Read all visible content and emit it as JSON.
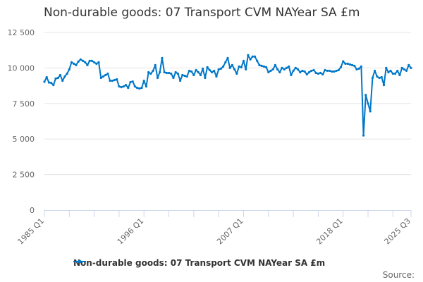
{
  "chart_data": {
    "type": "line",
    "title": "Non-durable goods: 07 Transport CVM NAYear SA £m",
    "xlabel": "",
    "ylabel": "",
    "ylim": [
      0,
      12500
    ],
    "yticks": [
      0,
      2500,
      5000,
      7500,
      10000,
      12500
    ],
    "ytick_labels": [
      "0",
      "2 500",
      "5 000",
      "7 500",
      "10 000",
      "12 500"
    ],
    "x_start": "1985 Q1",
    "x_end": "2025 Q3",
    "xtick_labels": [
      {
        "index": 0,
        "label": "1985 Q1"
      },
      {
        "index": 44,
        "label": "1996 Q1"
      },
      {
        "index": 88,
        "label": "2007 Q1"
      },
      {
        "index": 132,
        "label": "2018 Q1"
      },
      {
        "index": 162,
        "label": "2025 Q3"
      }
    ],
    "grid": true,
    "legend_position": "bottom",
    "series": [
      {
        "name": "Non-durable goods: 07 Transport CVM NAYear SA £m",
        "color": "#0077c8",
        "values": [
          9030,
          9350,
          8980,
          8950,
          8800,
          9250,
          9300,
          9500,
          9100,
          9400,
          9600,
          9900,
          10400,
          10300,
          10200,
          10450,
          10600,
          10500,
          10400,
          10200,
          10500,
          10500,
          10400,
          10300,
          10400,
          9300,
          9400,
          9500,
          9600,
          9100,
          9100,
          9150,
          9200,
          8700,
          8650,
          8700,
          8800,
          8600,
          9000,
          9050,
          8700,
          8600,
          8550,
          8600,
          9100,
          8700,
          9700,
          9600,
          9800,
          10200,
          9300,
          9700,
          10700,
          9700,
          9650,
          9650,
          9600,
          9300,
          9700,
          9600,
          9100,
          9500,
          9450,
          9400,
          9800,
          9750,
          9500,
          9850,
          9700,
          9500,
          9950,
          9300,
          10050,
          9850,
          9700,
          9800,
          9400,
          9900,
          9950,
          10100,
          10400,
          10700,
          10000,
          10200,
          9900,
          9600,
          10100,
          10050,
          10500,
          9900,
          10900,
          10600,
          10800,
          10800,
          10500,
          10200,
          10150,
          10100,
          10050,
          9700,
          9800,
          9900,
          10200,
          9900,
          9700,
          10000,
          9900,
          10000,
          10100,
          9500,
          9800,
          10000,
          9900,
          9700,
          9800,
          9750,
          9550,
          9700,
          9800,
          9850,
          9650,
          9600,
          9650,
          9550,
          9850,
          9800,
          9800,
          9750,
          9750,
          9800,
          9850,
          10050,
          10470,
          10300,
          10300,
          10250,
          10200,
          10150,
          9900,
          9950,
          10100,
          5250,
          8100,
          7500,
          6950,
          9300,
          9800,
          9400,
          9300,
          9350,
          8800,
          10000,
          9700,
          9800,
          9600,
          9600,
          9800,
          9500,
          10000,
          9900,
          9800,
          10200,
          10000
        ]
      }
    ],
    "source_label": "Source:"
  }
}
